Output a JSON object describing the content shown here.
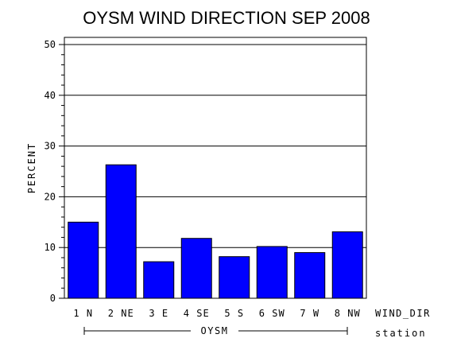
{
  "chart_data": {
    "type": "bar",
    "title": "OYSM WIND DIRECTION SEP 2008",
    "ylabel": "PERCENT",
    "xlabel": "WIND_DIR",
    "group_label": "station",
    "group_value": "OYSM",
    "categories": [
      "1 N",
      "2 NE",
      "3 E",
      "4 SE",
      "5 S",
      "6 SW",
      "7 W",
      "8 NW"
    ],
    "values": [
      15.0,
      26.3,
      7.2,
      11.8,
      8.2,
      10.2,
      9.0,
      13.1
    ],
    "ylim": [
      0,
      50
    ],
    "yticks": [
      "0",
      "10",
      "20",
      "30",
      "40",
      "50"
    ],
    "grid": true,
    "bar_color": "#0000ff"
  }
}
